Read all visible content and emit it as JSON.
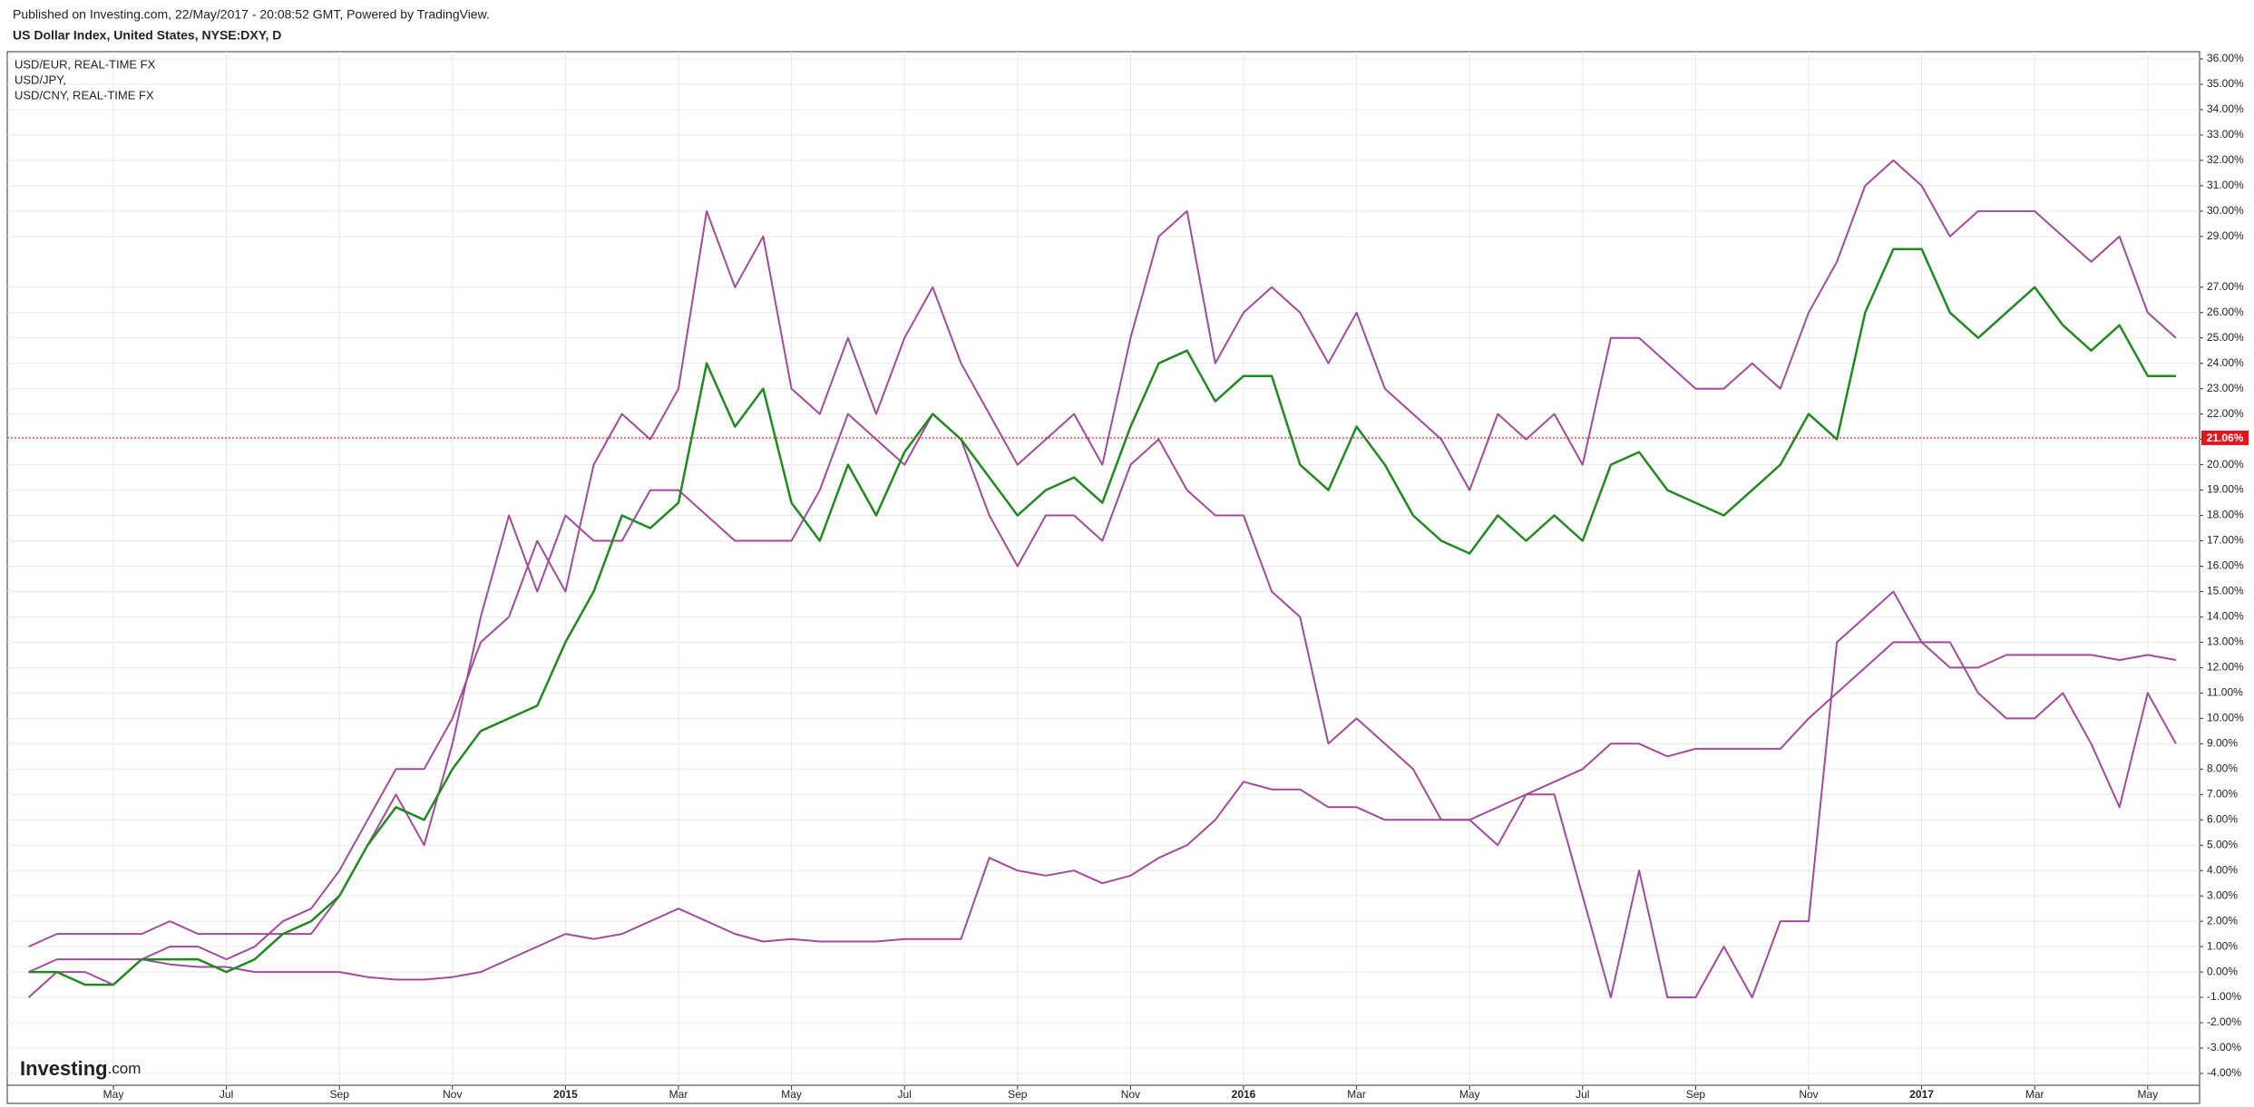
{
  "header": {
    "published": "Published on Investing.com, 22/May/2017 - 20:08:52 GMT, Powered by TradingView.",
    "title": "US Dollar Index, United States, NYSE:DXY, D"
  },
  "chart_data": {
    "type": "line",
    "categories": [
      null,
      null,
      null,
      "May",
      null,
      null,
      null,
      "Jul",
      null,
      null,
      null,
      "Sep",
      null,
      null,
      null,
      "Nov",
      null,
      null,
      null,
      "2015",
      null,
      null,
      null,
      "Mar",
      null,
      null,
      null,
      "May",
      null,
      null,
      null,
      "Jul",
      null,
      null,
      null,
      "Sep",
      null,
      null,
      null,
      "Nov",
      null,
      null,
      null,
      "2016",
      null,
      null,
      null,
      "Mar",
      null,
      null,
      null,
      "May",
      null,
      null,
      null,
      "Jul",
      null,
      null,
      null,
      "Sep",
      null,
      null,
      null,
      "Nov",
      null,
      null,
      null,
      "2017",
      null,
      null,
      null,
      "Mar",
      null,
      null,
      null,
      "May",
      null
    ],
    "color": "#1f8a1f",
    "values": [
      0,
      0,
      -0.5,
      -0.5,
      0.5,
      0.5,
      0.5,
      0,
      0.5,
      1.5,
      2,
      3,
      5,
      6.5,
      6,
      8,
      9.5,
      10,
      10.5,
      13,
      15,
      18,
      17.5,
      18.5,
      24,
      21.5,
      23,
      18.5,
      17,
      20,
      18,
      20.5,
      22,
      21,
      19.5,
      18,
      19,
      19.5,
      18.5,
      21.5,
      24,
      24.5,
      22.5,
      23.5,
      23.5,
      20,
      19,
      21.5,
      20,
      18,
      17,
      16.5,
      18,
      17,
      18,
      17,
      20,
      20.5,
      19,
      18.5,
      18,
      19,
      20,
      22,
      21,
      26,
      28.5,
      28.5,
      26,
      25,
      26,
      27,
      25.5,
      24.5,
      25.5,
      23.5,
      23.5
    ],
    "series": [
      {
        "name": "USD/EUR, REAL-TIME FX",
        "color": "#a24a9c",
        "values": [
          -1,
          0,
          0,
          -0.5,
          0.5,
          1,
          1,
          0.5,
          1,
          2,
          2.5,
          4,
          6,
          8,
          8,
          10,
          13,
          14,
          17,
          15,
          20,
          22,
          21,
          23,
          30,
          27,
          29,
          23,
          22,
          25,
          22,
          25,
          27,
          24,
          22,
          20,
          21,
          22,
          20,
          25,
          29,
          30,
          24,
          26,
          27,
          26,
          24,
          26,
          23,
          22,
          21,
          19,
          22,
          21,
          22,
          20,
          25,
          25,
          24,
          23,
          23,
          24,
          23,
          26,
          28,
          31,
          32,
          31,
          29,
          30,
          30,
          30,
          29,
          28,
          29,
          26,
          25
        ]
      },
      {
        "name": "USD/JPY,",
        "color": "#a24a9c",
        "values": [
          1,
          1.5,
          1.5,
          1.5,
          1.5,
          2,
          1.5,
          1.5,
          1.5,
          1.5,
          1.5,
          3,
          5,
          7,
          5,
          9,
          14,
          18,
          15,
          18,
          17,
          17,
          19,
          19,
          18,
          17,
          17,
          17,
          19,
          22,
          21,
          20,
          22,
          21,
          18,
          16,
          18,
          18,
          17,
          20,
          21,
          19,
          18,
          18,
          15,
          14,
          9,
          10,
          9,
          8,
          6,
          6,
          5,
          7,
          7,
          3,
          -1,
          4,
          -1,
          -1,
          1,
          -1,
          2,
          2,
          13,
          14,
          15,
          13,
          13,
          11,
          10,
          10,
          11,
          9,
          6.5,
          11,
          9
        ]
      },
      {
        "name": "USD/CNY, REAL-TIME FX",
        "color": "#a24a9c",
        "values": [
          0,
          0.5,
          0.5,
          0.5,
          0.5,
          0.3,
          0.2,
          0.2,
          0,
          0,
          0,
          0,
          -0.2,
          -0.3,
          -0.3,
          -0.2,
          0,
          0.5,
          1,
          1.5,
          1.3,
          1.5,
          2,
          2.5,
          2,
          1.5,
          1.2,
          1.3,
          1.2,
          1.2,
          1.2,
          1.3,
          1.3,
          1.3,
          4.5,
          4,
          3.8,
          4,
          3.5,
          3.8,
          4.5,
          5,
          6,
          7.5,
          7.2,
          7.2,
          6.5,
          6.5,
          6,
          6,
          6,
          6,
          6.5,
          7,
          7.5,
          8,
          9,
          9,
          8.5,
          8.8,
          8.8,
          8.8,
          8.8,
          10,
          11,
          12,
          13,
          13,
          12,
          12,
          12.5,
          12.5,
          12.5,
          12.5,
          12.3,
          12.5,
          12.3
        ]
      }
    ],
    "ylim": [
      -4,
      36
    ],
    "yticks": [
      {
        "value": -4,
        "label": "-4.00%"
      },
      {
        "value": -3,
        "label": "-3.00%"
      },
      {
        "value": -2,
        "label": "-2.00%"
      },
      {
        "value": -1,
        "label": "-1.00%"
      },
      {
        "value": 0,
        "label": "0.00%"
      },
      {
        "value": 1,
        "label": "1.00%"
      },
      {
        "value": 2,
        "label": "2.00%"
      },
      {
        "value": 3,
        "label": "3.00%"
      },
      {
        "value": 4,
        "label": "4.00%"
      },
      {
        "value": 5,
        "label": "5.00%"
      },
      {
        "value": 6,
        "label": "6.00%"
      },
      {
        "value": 7,
        "label": "7.00%"
      },
      {
        "value": 8,
        "label": "8.00%"
      },
      {
        "value": 9,
        "label": "9.00%"
      },
      {
        "value": 10,
        "label": "10.00%"
      },
      {
        "value": 11,
        "label": "11.00%"
      },
      {
        "value": 12,
        "label": "12.00%"
      },
      {
        "value": 13,
        "label": "13.00%"
      },
      {
        "value": 14,
        "label": "14.00%"
      },
      {
        "value": 15,
        "label": "15.00%"
      },
      {
        "value": 16,
        "label": "16.00%"
      },
      {
        "value": 17,
        "label": "17.00%"
      },
      {
        "value": 18,
        "label": "18.00%"
      },
      {
        "value": 19,
        "label": "19.00%"
      },
      {
        "value": 20,
        "label": "20.00%"
      },
      {
        "value": 21,
        "label": "21.00%"
      },
      {
        "value": 22,
        "label": "22.00%"
      },
      {
        "value": 23,
        "label": "23.00%"
      },
      {
        "value": 24,
        "label": "24.00%"
      },
      {
        "value": 25,
        "label": "25.00%"
      },
      {
        "value": 26,
        "label": "26.00%"
      },
      {
        "value": 27,
        "label": "27.00%"
      },
      {
        "value": 29,
        "label": "29.00%"
      },
      {
        "value": 30,
        "label": "30.00%"
      },
      {
        "value": 31,
        "label": "31.00%"
      },
      {
        "value": 32,
        "label": "32.00%"
      },
      {
        "value": 33,
        "label": "33.00%"
      },
      {
        "value": 34,
        "label": "34.00%"
      },
      {
        "value": 35,
        "label": "35.00%"
      },
      {
        "value": 36,
        "label": "36.00%"
      }
    ],
    "grid": true,
    "current": {
      "value": 21.06,
      "label": "21.06%",
      "color": "#e8141c"
    },
    "watermark": {
      "brand": "Investing",
      "suffix": ".com"
    }
  }
}
